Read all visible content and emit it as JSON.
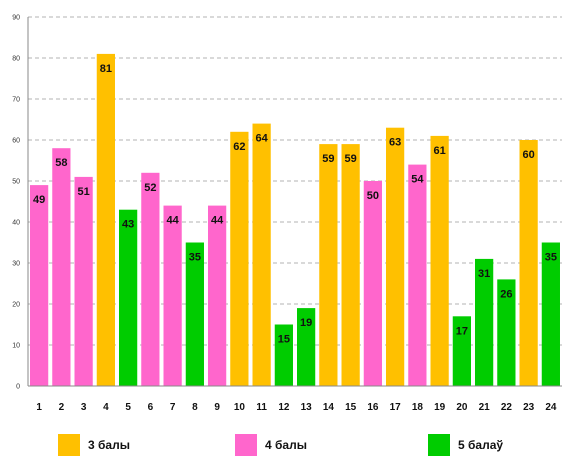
{
  "chart_data": {
    "type": "bar",
    "categories": [
      "1",
      "2",
      "3",
      "4",
      "5",
      "6",
      "7",
      "8",
      "9",
      "10",
      "11",
      "12",
      "13",
      "14",
      "15",
      "16",
      "17",
      "18",
      "19",
      "20",
      "21",
      "22",
      "23",
      "24"
    ],
    "values": [
      49,
      58,
      51,
      81,
      43,
      52,
      44,
      35,
      44,
      62,
      64,
      15,
      19,
      59,
      59,
      50,
      63,
      54,
      61,
      17,
      31,
      26,
      60,
      35
    ],
    "groups": [
      "4 балы",
      "4 балы",
      "4 балы",
      "3 балы",
      "5 балаў",
      "4 балы",
      "4 балы",
      "5 балаў",
      "4 балы",
      "3 балы",
      "3 балы",
      "5 балаў",
      "5 балаў",
      "3 балы",
      "3 балы",
      "4 балы",
      "3 балы",
      "4 балы",
      "3 балы",
      "5 балаў",
      "5 балаў",
      "5 балаў",
      "3 балы",
      "5 балаў"
    ],
    "data_labels": [
      "49",
      "58",
      "51",
      "81",
      "43",
      "52",
      "44",
      "35",
      "44",
      "62",
      "64",
      "15",
      "19",
      "59",
      "59",
      "50",
      "63",
      "54",
      "61",
      "17",
      "31",
      "26",
      "60",
      "35"
    ],
    "yticks": [
      "0",
      "10",
      "20",
      "30",
      "40",
      "50",
      "60",
      "70",
      "80",
      "90"
    ],
    "ylim": [
      0,
      90
    ],
    "grid": true,
    "legend": [
      {
        "name": "3 балы",
        "color": "#FFC000"
      },
      {
        "name": "4 балы",
        "color": "#FF66CC"
      },
      {
        "name": "5 балаў",
        "color": "#00CC00"
      }
    ],
    "legend_position": "bottom"
  }
}
